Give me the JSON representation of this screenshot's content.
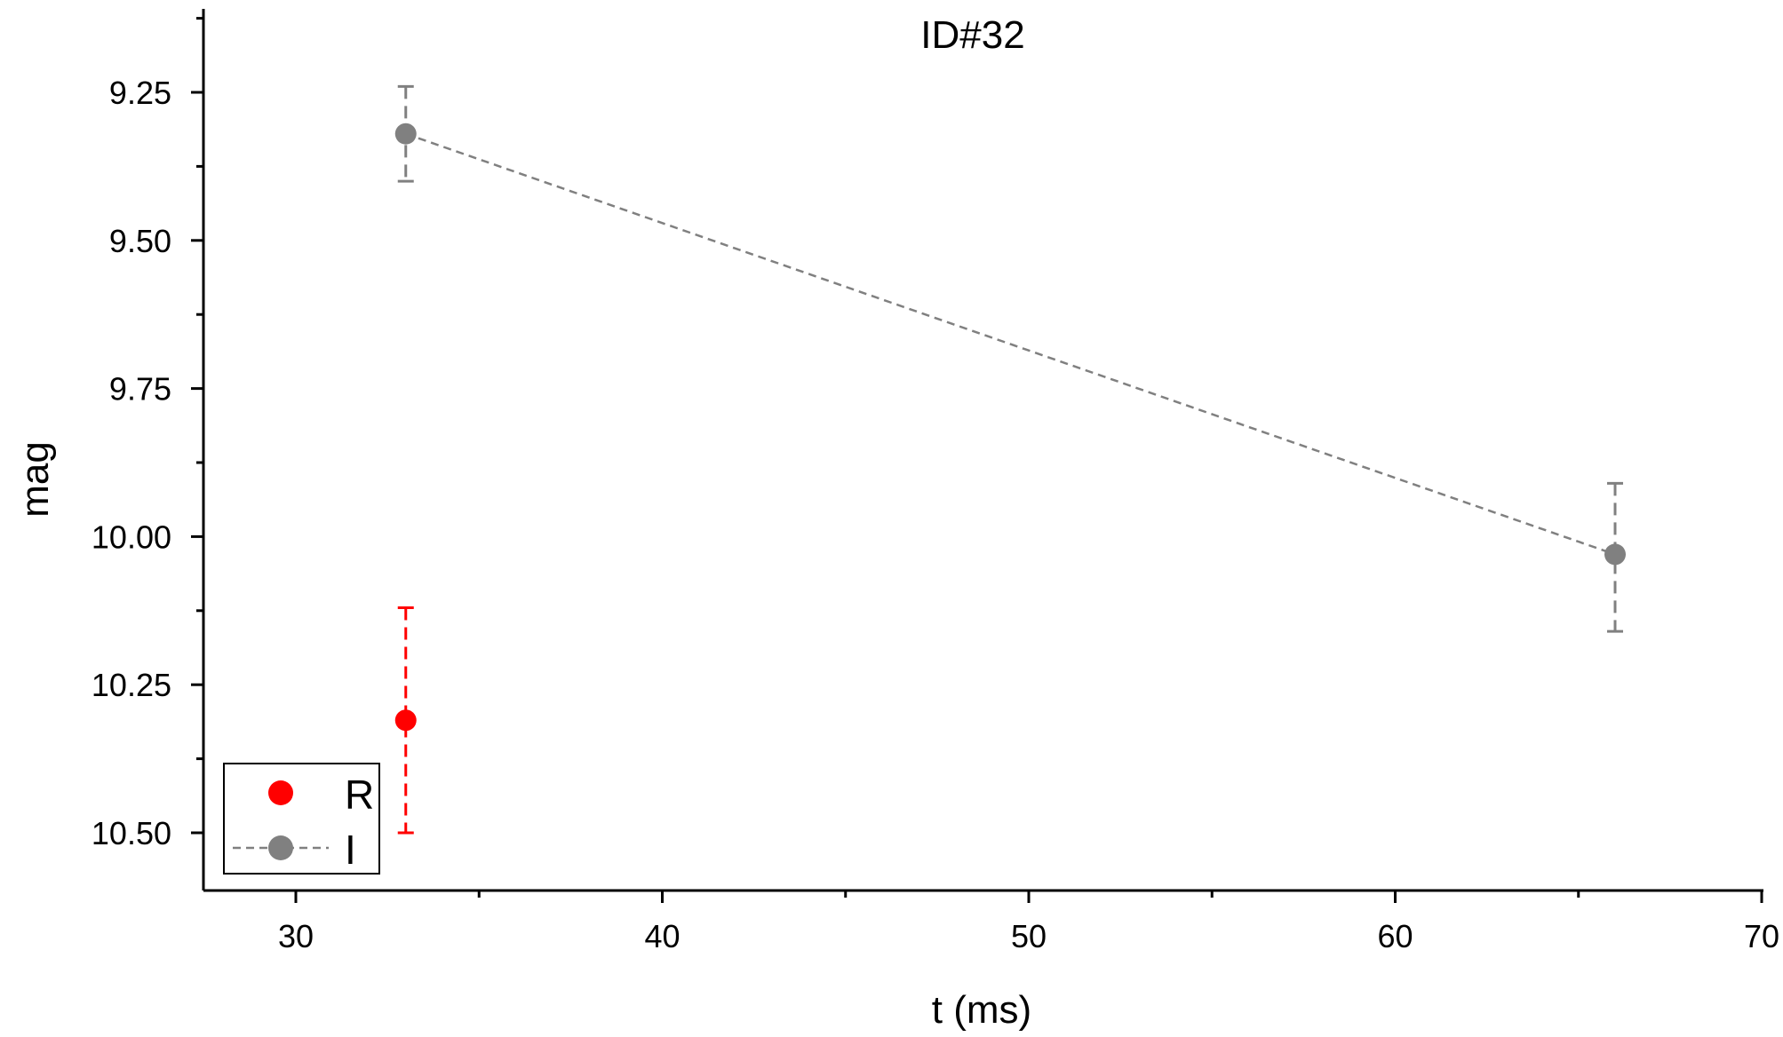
{
  "chart_data": {
    "type": "scatter",
    "title": "ID#32",
    "xlabel": "t (ms)",
    "ylabel": "mag",
    "xlim": [
      27.5,
      70
    ],
    "ylim": [
      9.0,
      10.6
    ],
    "y_inverted": true,
    "x_ticks": [
      30,
      40,
      50,
      60,
      70
    ],
    "x_tick_labels": [
      "30",
      "40",
      "50",
      "60",
      "70"
    ],
    "y_ticks": [
      9.25,
      9.5,
      9.75,
      10.0,
      10.25,
      10.5
    ],
    "y_tick_labels": [
      "9.25",
      "9.50",
      "9.75",
      "10.00",
      "10.25",
      "10.50"
    ],
    "grid": false,
    "legend_position": "bottom-left",
    "series": [
      {
        "name": "R",
        "color": "#ff0000",
        "marker": "circle",
        "line": "none",
        "points": [
          {
            "x": 33,
            "y": 10.31,
            "yerr_low": 10.12,
            "yerr_high": 10.5
          }
        ]
      },
      {
        "name": "I",
        "color": "#808080",
        "marker": "circle",
        "line": "dashed",
        "points": [
          {
            "x": 33,
            "y": 9.32,
            "yerr_low": 9.24,
            "yerr_high": 9.4
          },
          {
            "x": 66,
            "y": 10.03,
            "yerr_low": 9.91,
            "yerr_high": 10.16
          }
        ]
      }
    ]
  }
}
